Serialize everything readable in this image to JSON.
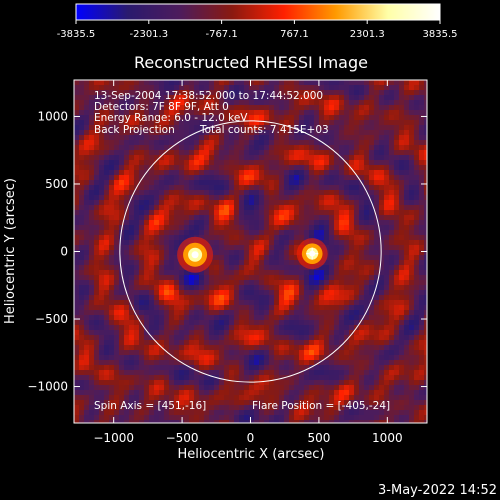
{
  "colors": {
    "background": "#000000",
    "foreground": "#ffffff",
    "colormap": [
      "#0000ff",
      "#2a1a6e",
      "#4d1c5c",
      "#8a1a10",
      "#ff2000",
      "#ff9a00",
      "#ffffa8",
      "#ffffff"
    ]
  },
  "colorbar": {
    "ticks": [
      "-3835.5",
      "-2301.3",
      "-767.1",
      "767.1",
      "2301.3",
      "3835.5"
    ]
  },
  "footer": {
    "timestamp": "3-May-2022 14:52"
  },
  "chart_data": {
    "type": "heatmap",
    "title": "Reconstructed RHESSI Image",
    "xlabel": "Heliocentric X (arcsec)",
    "ylabel": "Heliocentric Y (arcsec)",
    "xlim": [
      -1290,
      1290
    ],
    "ylim": [
      -1270,
      1270
    ],
    "xticks": [
      -1000,
      -500,
      0,
      500,
      1000
    ],
    "yticks": [
      -1000,
      -500,
      0,
      500,
      1000
    ],
    "xticklabels": [
      "−1000",
      "−500",
      "0",
      "500",
      "1000"
    ],
    "yticklabels": [
      "−1000",
      "−500",
      "0",
      "500",
      "1000"
    ],
    "value_range": [
      -3835.5,
      3835.5
    ],
    "annotations": [
      "13-Sep-2004 17:38:52.000 to 17:44:52.000",
      "Detectors: 7F 8F 9F, Att 0",
      "Energy Range: 6.0 - 12.0 keV",
      "Back Projection",
      "Total counts: 7.415E+03"
    ],
    "spin_axis_label": "Spin Axis = [451,-16]",
    "flare_position_label": "Flare Position = [-405,-24]",
    "solar_limb_radius": 955,
    "sources": [
      {
        "x": -405,
        "y": -24,
        "peak": 3835.5
      },
      {
        "x": 451,
        "y": -16,
        "peak": 3300
      }
    ],
    "spin_axis": {
      "x": 451,
      "y": -16
    }
  }
}
